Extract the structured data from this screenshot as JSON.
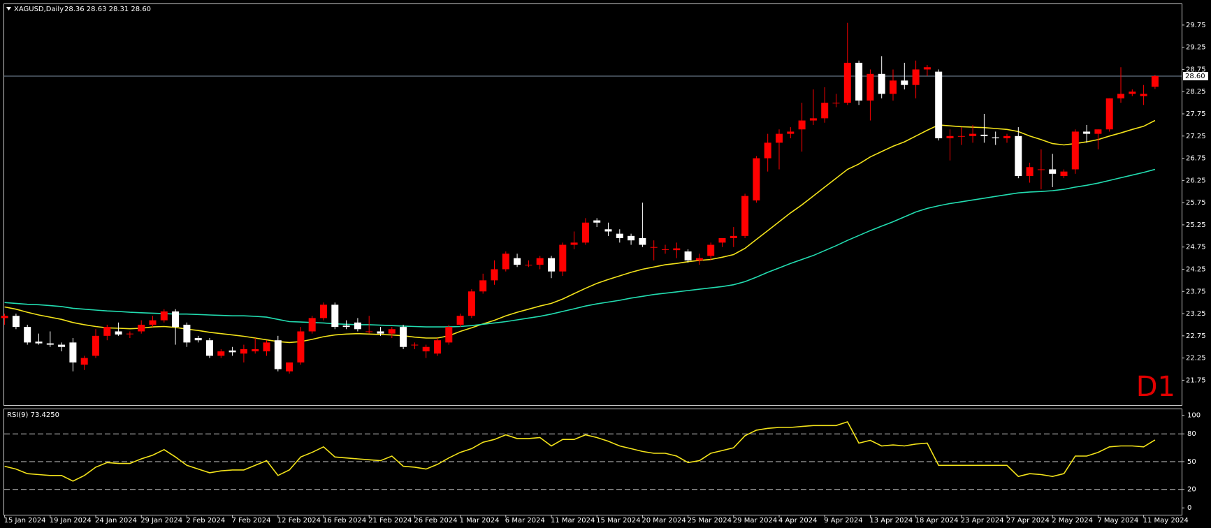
{
  "chart_data": {
    "type": "candlestick",
    "title": "XAGUSD,Daily",
    "ohlc_label": "28.36 28.63 28.31 28.60",
    "annotation": "D1",
    "annotation_color": "#e00000",
    "up_color": "#ff0000",
    "down_color": "#ffffff",
    "categories": [
      "15 Jan 2024",
      null,
      null,
      null,
      "19 Jan 2024",
      null,
      null,
      null,
      "24 Jan 2024",
      null,
      null,
      null,
      "29 Jan 2024",
      null,
      null,
      null,
      "2 Feb 2024",
      null,
      null,
      null,
      "7 Feb 2024",
      null,
      null,
      null,
      "12 Feb 2024",
      null,
      null,
      null,
      "16 Feb 2024",
      null,
      null,
      null,
      "21 Feb 2024",
      null,
      null,
      null,
      "26 Feb 2024",
      null,
      null,
      null,
      "1 Mar 2024",
      null,
      null,
      null,
      "6 Mar 2024",
      null,
      null,
      null,
      "11 Mar 2024",
      null,
      null,
      null,
      "15 Mar 2024",
      null,
      null,
      null,
      "20 Mar 2024",
      null,
      null,
      null,
      "25 Mar 2024",
      null,
      null,
      null,
      "29 Mar 2024",
      null,
      null,
      null,
      "4 Apr 2024",
      null,
      null,
      null,
      "9 Apr 2024",
      null,
      null,
      null,
      "13 Apr 2024",
      null,
      null,
      null,
      "18 Apr 2024",
      null,
      null,
      null,
      "23 Apr 2024",
      null,
      null,
      null,
      "27 Apr 2024",
      null,
      null,
      null,
      "2 May 2024",
      null,
      null,
      null,
      "7 May 2024",
      null,
      null,
      null,
      "11 May 2024",
      null
    ],
    "open": [
      23.15,
      23.2,
      22.95,
      22.62,
      22.58,
      22.55,
      22.6,
      22.1,
      22.3,
      22.75,
      22.85,
      22.8,
      22.85,
      23.0,
      23.1,
      23.3,
      23.0,
      22.7,
      22.65,
      22.3,
      22.42,
      22.35,
      22.4,
      22.4,
      22.65,
      21.95,
      22.15,
      22.85,
      23.15,
      23.45,
      22.98,
      23.05,
      22.85,
      22.85,
      22.8,
      22.95,
      22.55,
      22.4,
      22.35,
      22.6,
      23.0,
      23.2,
      23.75,
      24.0,
      24.25,
      24.5,
      24.35,
      24.35,
      24.5,
      24.2,
      24.8,
      24.85,
      25.35,
      25.15,
      25.05,
      25.0,
      24.95,
      24.75,
      24.7,
      24.68,
      24.65,
      24.45,
      24.55,
      24.85,
      24.95,
      25.0,
      25.8,
      26.75,
      27.1,
      27.3,
      27.4,
      27.6,
      27.65,
      28.0,
      28.0,
      28.9,
      28.05,
      28.65,
      28.2,
      28.5,
      28.4,
      28.75,
      28.7,
      27.2,
      27.25,
      27.25,
      27.28,
      27.22,
      27.2,
      27.25,
      26.35,
      26.5,
      26.5,
      26.35,
      26.5,
      27.35,
      27.3,
      27.4,
      28.1,
      28.2,
      28.15,
      28.36
    ],
    "high": [
      23.25,
      23.25,
      23.0,
      22.8,
      22.85,
      22.6,
      22.7,
      22.3,
      22.9,
      23.0,
      23.05,
      22.85,
      23.1,
      23.2,
      23.35,
      23.35,
      23.05,
      22.75,
      22.7,
      22.45,
      22.5,
      22.55,
      22.7,
      22.65,
      22.75,
      22.15,
      22.95,
      23.2,
      23.5,
      23.5,
      23.1,
      23.15,
      23.2,
      22.95,
      22.95,
      23.0,
      22.6,
      22.55,
      22.7,
      23.0,
      23.25,
      23.8,
      24.15,
      24.45,
      24.65,
      24.6,
      24.45,
      24.55,
      24.55,
      24.85,
      25.1,
      25.4,
      25.4,
      25.3,
      25.15,
      25.05,
      25.75,
      24.9,
      24.8,
      24.85,
      24.7,
      24.6,
      24.85,
      24.95,
      25.2,
      25.95,
      26.8,
      27.3,
      27.4,
      27.45,
      28.0,
      28.3,
      28.35,
      28.2,
      29.8,
      28.95,
      28.75,
      29.05,
      28.75,
      28.9,
      28.95,
      28.85,
      28.75,
      27.4,
      27.45,
      27.5,
      27.75,
      27.35,
      27.3,
      27.45,
      26.65,
      26.95,
      26.85,
      26.5,
      27.4,
      27.5,
      27.4,
      28.1,
      28.8,
      28.3,
      28.4,
      28.63
    ],
    "low": [
      23.0,
      22.9,
      22.55,
      22.55,
      22.5,
      22.4,
      21.95,
      21.98,
      22.25,
      22.65,
      22.75,
      22.7,
      22.8,
      22.95,
      23.05,
      22.55,
      22.5,
      22.6,
      22.25,
      22.25,
      22.3,
      22.15,
      22.35,
      22.3,
      21.95,
      21.9,
      22.1,
      22.8,
      23.1,
      22.9,
      22.9,
      22.85,
      22.8,
      22.75,
      22.7,
      22.45,
      22.45,
      22.25,
      22.3,
      22.55,
      22.95,
      23.15,
      23.7,
      23.9,
      24.2,
      24.3,
      24.3,
      24.25,
      24.05,
      24.1,
      24.7,
      24.8,
      25.2,
      25.0,
      24.85,
      24.8,
      24.75,
      24.45,
      24.6,
      24.5,
      24.4,
      24.35,
      24.45,
      24.75,
      24.75,
      24.95,
      25.75,
      26.45,
      26.5,
      27.2,
      26.9,
      27.5,
      27.55,
      27.9,
      27.95,
      27.95,
      27.6,
      28.1,
      28.05,
      28.3,
      28.1,
      28.6,
      27.15,
      26.7,
      27.05,
      27.1,
      27.1,
      27.05,
      27.1,
      26.3,
      26.2,
      26.05,
      26.1,
      26.3,
      26.4,
      27.1,
      26.95,
      27.35,
      28.0,
      28.15,
      27.95,
      28.31
    ],
    "close": [
      23.2,
      22.95,
      22.6,
      22.58,
      22.55,
      22.5,
      22.15,
      22.25,
      22.75,
      22.95,
      22.78,
      22.8,
      23.0,
      23.1,
      23.3,
      22.95,
      22.6,
      22.65,
      22.3,
      22.4,
      22.38,
      22.45,
      22.45,
      22.6,
      22.0,
      22.15,
      22.85,
      23.15,
      23.45,
      22.95,
      22.95,
      22.9,
      22.85,
      22.8,
      22.9,
      22.5,
      22.55,
      22.5,
      22.65,
      22.95,
      23.2,
      23.75,
      24.0,
      24.25,
      24.6,
      24.35,
      24.35,
      24.5,
      24.2,
      24.8,
      24.85,
      25.3,
      25.3,
      25.1,
      24.95,
      24.9,
      24.8,
      24.75,
      24.7,
      24.72,
      24.45,
      24.5,
      24.8,
      24.95,
      25.0,
      25.9,
      26.75,
      27.1,
      27.3,
      27.35,
      27.6,
      27.65,
      28.0,
      28.0,
      28.9,
      28.05,
      28.65,
      28.2,
      28.5,
      28.4,
      28.75,
      28.8,
      27.2,
      27.25,
      27.25,
      27.3,
      27.25,
      27.2,
      27.25,
      26.35,
      26.55,
      26.5,
      26.4,
      26.45,
      27.35,
      27.3,
      27.4,
      28.1,
      28.2,
      28.25,
      28.2,
      28.6
    ],
    "series": [
      {
        "color": "#f2e21a",
        "values": [
          23.4,
          23.35,
          23.28,
          23.22,
          23.17,
          23.12,
          23.05,
          23.0,
          22.96,
          22.93,
          22.92,
          22.91,
          22.92,
          22.95,
          22.96,
          22.94,
          22.9,
          22.87,
          22.83,
          22.8,
          22.77,
          22.74,
          22.7,
          22.66,
          22.62,
          22.6,
          22.62,
          22.67,
          22.73,
          22.77,
          22.79,
          22.8,
          22.79,
          22.78,
          22.77,
          22.75,
          22.72,
          22.7,
          22.7,
          22.75,
          22.85,
          22.93,
          23.02,
          23.1,
          23.2,
          23.28,
          23.35,
          23.42,
          23.48,
          23.58,
          23.7,
          23.82,
          23.93,
          24.02,
          24.1,
          24.18,
          24.25,
          24.3,
          24.35,
          24.38,
          24.42,
          24.45,
          24.47,
          24.52,
          24.58,
          24.72,
          24.92,
          25.12,
          25.32,
          25.52,
          25.7,
          25.9,
          26.1,
          26.3,
          26.5,
          26.62,
          26.78,
          26.9,
          27.02,
          27.12,
          27.25,
          27.38,
          27.5,
          27.48,
          27.46,
          27.45,
          27.44,
          27.42,
          27.4,
          27.35,
          27.25,
          27.17,
          27.08,
          27.05,
          27.08,
          27.12,
          27.17,
          27.25,
          27.32,
          27.4,
          27.47,
          27.6
        ]
      },
      {
        "color": "#22dcb0",
        "values": [
          23.5,
          23.48,
          23.46,
          23.45,
          23.43,
          23.41,
          23.37,
          23.35,
          23.33,
          23.31,
          23.3,
          23.28,
          23.27,
          23.26,
          23.25,
          23.24,
          23.24,
          23.23,
          23.22,
          23.21,
          23.2,
          23.2,
          23.19,
          23.17,
          23.12,
          23.07,
          23.06,
          23.05,
          23.04,
          23.02,
          23.01,
          23.0,
          23.0,
          22.99,
          22.98,
          22.97,
          22.96,
          22.95,
          22.95,
          22.95,
          22.96,
          22.98,
          23.01,
          23.04,
          23.07,
          23.11,
          23.15,
          23.19,
          23.24,
          23.3,
          23.36,
          23.42,
          23.47,
          23.51,
          23.55,
          23.6,
          23.64,
          23.68,
          23.71,
          23.74,
          23.77,
          23.8,
          23.83,
          23.86,
          23.9,
          23.97,
          24.07,
          24.18,
          24.28,
          24.38,
          24.47,
          24.56,
          24.67,
          24.78,
          24.9,
          25.01,
          25.12,
          25.22,
          25.32,
          25.43,
          25.54,
          25.62,
          25.68,
          25.73,
          25.77,
          25.81,
          25.85,
          25.89,
          25.93,
          25.97,
          25.99,
          26.0,
          26.02,
          26.05,
          26.1,
          26.14,
          26.19,
          26.25,
          26.31,
          26.37,
          26.43,
          26.5
        ]
      }
    ],
    "last_price": {
      "value": 28.6,
      "label": "28.60"
    },
    "price_line_color": "#7d8ea3",
    "ylim": [
      21.19,
      30.22
    ],
    "yticks": [
      21.75,
      22.25,
      22.75,
      23.25,
      23.75,
      24.25,
      24.75,
      25.25,
      25.75,
      26.25,
      26.75,
      27.25,
      27.75,
      28.25,
      28.75,
      29.25,
      29.75
    ],
    "rsi": {
      "title": "RSI(9) 73.4250",
      "color": "#f2e21a",
      "values": [
        45,
        42,
        37,
        36,
        35,
        35,
        29,
        35,
        44,
        49,
        48,
        48,
        53,
        57,
        63,
        55,
        46,
        42,
        38,
        40,
        41,
        41,
        46,
        51,
        35,
        41,
        55,
        60,
        66,
        55,
        54,
        53,
        52,
        51,
        56,
        45,
        44,
        42,
        47,
        54,
        60,
        64,
        71,
        74,
        79,
        75,
        75,
        76,
        67,
        74,
        74,
        79,
        76,
        72,
        67,
        64,
        61,
        59,
        59,
        56,
        49,
        51,
        59,
        62,
        65,
        78,
        84,
        86,
        87,
        87,
        88,
        89,
        89,
        89,
        93,
        70,
        73,
        67,
        68,
        67,
        69,
        70,
        46,
        46,
        46,
        46,
        46,
        46,
        46,
        34,
        37,
        36,
        34,
        37,
        56,
        56,
        60,
        66,
        67,
        67,
        66,
        73.425
      ],
      "ylim": [
        -7.4,
        106.6
      ],
      "yticks": [
        0,
        20,
        50,
        80,
        100
      ],
      "level_lines": true
    }
  }
}
